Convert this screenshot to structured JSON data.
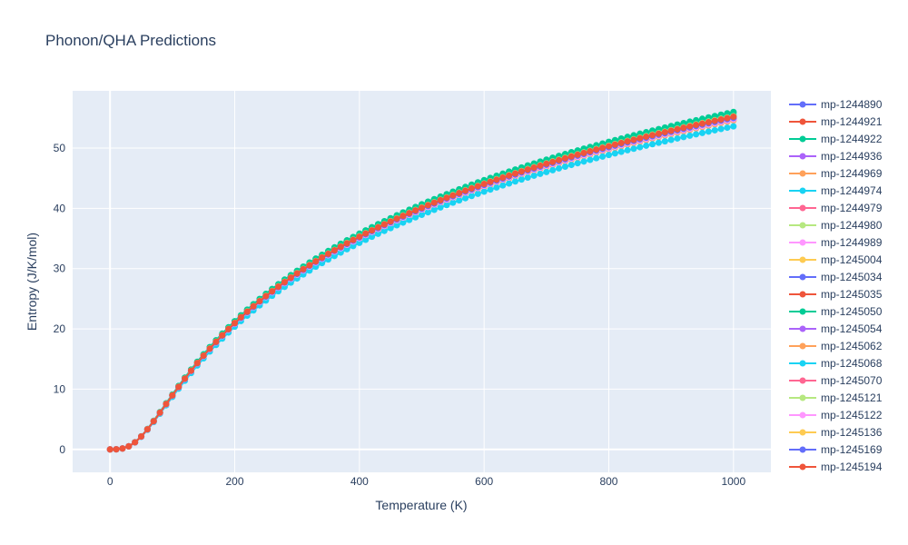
{
  "chart_data": {
    "type": "line",
    "title": "Phonon/QHA Predictions",
    "xlabel": "Temperature (K)",
    "ylabel": "Entropy (J/K/mol)",
    "xlim": [
      -60,
      1060
    ],
    "ylim": [
      -3.8,
      59.5
    ],
    "x_ticks": [
      0,
      200,
      400,
      600,
      800,
      1000
    ],
    "y_ticks": [
      0,
      10,
      20,
      30,
      40,
      50
    ],
    "x_tick_labels": [
      "0",
      "200",
      "400",
      "600",
      "800",
      "1000"
    ],
    "y_tick_labels": [
      "0",
      "10",
      "20",
      "30",
      "40",
      "50"
    ],
    "grid": true,
    "legend_position": "right",
    "x": [
      0,
      10,
      20,
      30,
      40,
      50,
      60,
      70,
      80,
      90,
      100,
      110,
      120,
      130,
      140,
      150,
      160,
      170,
      180,
      190,
      200,
      210,
      220,
      230,
      240,
      250,
      260,
      270,
      280,
      290,
      300,
      310,
      320,
      330,
      340,
      350,
      360,
      370,
      380,
      390,
      400,
      410,
      420,
      430,
      440,
      450,
      460,
      470,
      480,
      490,
      500,
      510,
      520,
      530,
      540,
      550,
      560,
      570,
      580,
      590,
      600,
      610,
      620,
      630,
      640,
      650,
      660,
      670,
      680,
      690,
      700,
      710,
      720,
      730,
      740,
      750,
      760,
      770,
      780,
      790,
      800,
      810,
      820,
      830,
      840,
      850,
      860,
      870,
      880,
      890,
      900,
      910,
      920,
      930,
      940,
      950,
      960,
      970,
      980,
      990,
      1000
    ],
    "series": [
      {
        "name": "mp-1244890",
        "color": "#636efa",
        "s_final": 54.9
      },
      {
        "name": "mp-1244921",
        "color": "#EF553B",
        "s_final": 55.2
      },
      {
        "name": "mp-1244922",
        "color": "#00cc96",
        "s_final": 56.0
      },
      {
        "name": "mp-1244936",
        "color": "#ab63fa",
        "s_final": 55.3
      },
      {
        "name": "mp-1244969",
        "color": "#FFA15A",
        "s_final": 54.8
      },
      {
        "name": "mp-1244974",
        "color": "#19d3f3",
        "s_final": 55.6
      },
      {
        "name": "mp-1244979",
        "color": "#FF6692",
        "s_final": 55.1
      },
      {
        "name": "mp-1244980",
        "color": "#B6E880",
        "s_final": 55.4
      },
      {
        "name": "mp-1244989",
        "color": "#FF97FF",
        "s_final": 54.7
      },
      {
        "name": "mp-1245004",
        "color": "#FECB52",
        "s_final": 55.0
      },
      {
        "name": "mp-1245034",
        "color": "#636efa",
        "s_final": 55.2
      },
      {
        "name": "mp-1245035",
        "color": "#EF553B",
        "s_final": 54.9
      },
      {
        "name": "mp-1245050",
        "color": "#00cc96",
        "s_final": 55.9
      },
      {
        "name": "mp-1245054",
        "color": "#ab63fa",
        "s_final": 55.1
      },
      {
        "name": "mp-1245062",
        "color": "#FFA15A",
        "s_final": 54.6
      },
      {
        "name": "mp-1245068",
        "color": "#19d3f3",
        "s_final": 53.6
      },
      {
        "name": "mp-1245070",
        "color": "#FF6692",
        "s_final": 55.0
      },
      {
        "name": "mp-1245121",
        "color": "#B6E880",
        "s_final": 55.3
      },
      {
        "name": "mp-1245122",
        "color": "#FF97FF",
        "s_final": 54.8
      },
      {
        "name": "mp-1245136",
        "color": "#FECB52",
        "s_final": 55.1
      },
      {
        "name": "mp-1245169",
        "color": "#636efa",
        "s_final": 55.0
      },
      {
        "name": "mp-1245194",
        "color": "#EF553B",
        "s_final": 55.2
      }
    ]
  }
}
